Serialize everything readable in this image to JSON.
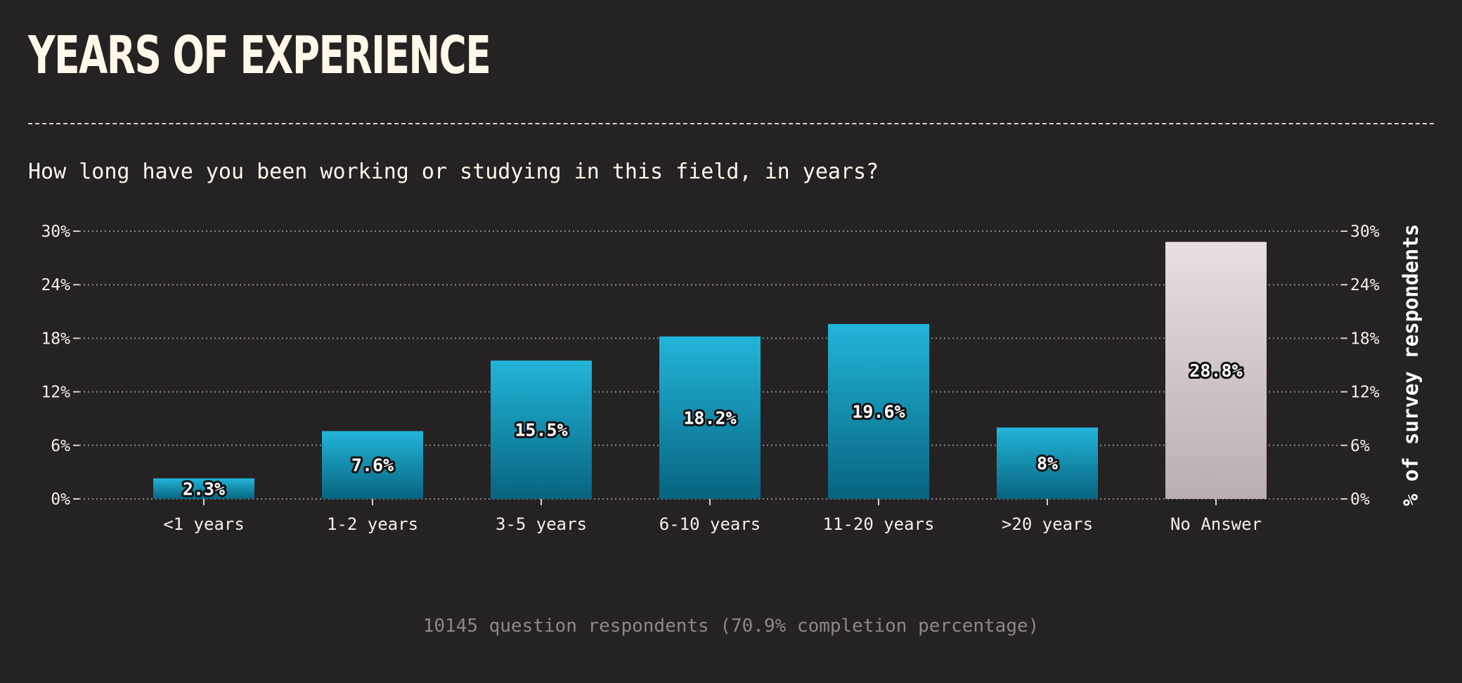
{
  "title": "YEARS OF EXPERIENCE",
  "subtitle": "How long have you been working or studying in this field, in years?",
  "footnote": "10145 question respondents (70.9% completion percentage)",
  "chart_data": {
    "type": "bar",
    "categories": [
      "<1 years",
      "1-2 years",
      "3-5 years",
      "6-10 years",
      "11-20 years",
      ">20 years",
      "No Answer"
    ],
    "values": [
      2.3,
      7.6,
      15.5,
      18.2,
      19.6,
      8,
      28.8
    ],
    "value_labels": [
      "2.3%",
      "7.6%",
      "15.5%",
      "18.2%",
      "19.6%",
      "8%",
      "28.8%"
    ],
    "ylim": [
      0,
      30
    ],
    "yticks": [
      0,
      6,
      12,
      18,
      24,
      30
    ],
    "ytick_labels": [
      "0%",
      "6%",
      "12%",
      "18%",
      "24%",
      "30%"
    ],
    "ylabel": "% of survey respondents",
    "xlabel": "",
    "grid": true,
    "colors": {
      "bar_top": "#22b5d9",
      "bar_bottom": "#07647f",
      "highlight_top": "#e8dfe2",
      "highlight_bottom": "#b9aeb1",
      "grid": "#8d8788",
      "background": "#252224"
    },
    "highlight_category": "No Answer"
  }
}
